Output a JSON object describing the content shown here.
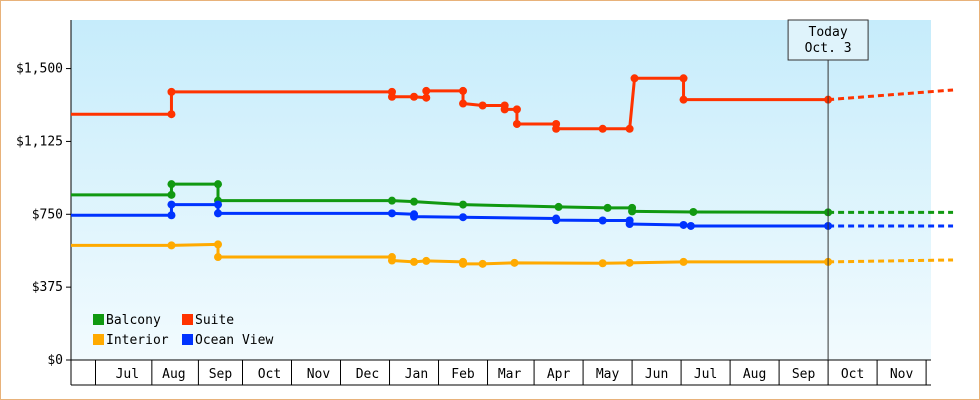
{
  "chart_data": {
    "type": "line",
    "title": "",
    "xlabel": "",
    "ylabel": "",
    "ylim": [
      0,
      1750
    ],
    "y_ticks": [
      0,
      375,
      750,
      1125,
      1500
    ],
    "y_tick_labels": [
      "$0",
      "$375",
      "$750",
      "$1,125",
      "$1,500"
    ],
    "x_ticks": [
      {
        "label": "Jul",
        "x": 2.15
      },
      {
        "label": "Aug",
        "x": 3.1
      },
      {
        "label": "Sep",
        "x": 4.05
      },
      {
        "label": "Oct",
        "x": 5.05
      },
      {
        "label": "Nov",
        "x": 6.05
      },
      {
        "label": "Dec",
        "x": 7.05
      },
      {
        "label": "Jan",
        "x": 8.05
      },
      {
        "label": "Feb",
        "x": 9.0
      },
      {
        "label": "Mar",
        "x": 9.95
      },
      {
        "label": "Apr",
        "x": 10.95
      },
      {
        "label": "May",
        "x": 11.95
      },
      {
        "label": "Jun",
        "x": 12.95
      },
      {
        "label": "Jul",
        "x": 13.95
      },
      {
        "label": "Aug",
        "x": 14.95
      },
      {
        "label": "Sep",
        "x": 15.95
      },
      {
        "label": "Oct",
        "x": 16.95
      },
      {
        "label": "Nov",
        "x": 17.95
      }
    ],
    "x_boundaries": [
      1.0,
      1.5,
      2.65,
      3.6,
      4.5,
      5.5,
      6.5,
      7.5,
      8.5,
      9.5,
      10.45,
      11.45,
      12.45,
      13.45,
      14.45,
      15.45,
      16.45,
      17.45,
      18.45
    ],
    "x_range": [
      1.0,
      18.55
    ],
    "today": {
      "x": 16.45,
      "label_line1": "Today",
      "label_line2": "Oct. 3"
    },
    "legend": {
      "placement": "bottom-left"
    },
    "series": [
      {
        "name": "Balcony",
        "color": "#119911",
        "points": [
          [
            1.0,
            850
          ],
          [
            3.05,
            850
          ],
          [
            3.05,
            905
          ],
          [
            4.0,
            905
          ],
          [
            4.0,
            820
          ],
          [
            7.55,
            820
          ],
          [
            8.0,
            815
          ],
          [
            9.0,
            800
          ],
          [
            10.95,
            788
          ],
          [
            11.95,
            783
          ],
          [
            12.45,
            783
          ],
          [
            12.45,
            765
          ],
          [
            13.7,
            762
          ],
          [
            16.45,
            760
          ]
        ],
        "forecast": [
          [
            16.45,
            760
          ],
          [
            19.0,
            760
          ]
        ]
      },
      {
        "name": "Suite",
        "color": "#ff3300",
        "points": [
          [
            1.0,
            1265
          ],
          [
            3.05,
            1265
          ],
          [
            3.05,
            1380
          ],
          [
            7.55,
            1380
          ],
          [
            7.55,
            1355
          ],
          [
            8.0,
            1355
          ],
          [
            8.25,
            1350
          ],
          [
            8.25,
            1385
          ],
          [
            9.0,
            1385
          ],
          [
            9.0,
            1320
          ],
          [
            9.4,
            1310
          ],
          [
            9.85,
            1310
          ],
          [
            9.85,
            1290
          ],
          [
            10.1,
            1290
          ],
          [
            10.1,
            1215
          ],
          [
            10.9,
            1215
          ],
          [
            10.9,
            1190
          ],
          [
            11.85,
            1190
          ],
          [
            12.4,
            1190
          ],
          [
            12.5,
            1450
          ],
          [
            13.5,
            1450
          ],
          [
            13.5,
            1340
          ],
          [
            16.45,
            1340
          ]
        ],
        "forecast": [
          [
            16.45,
            1340
          ],
          [
            19.0,
            1390
          ]
        ]
      },
      {
        "name": "Interior",
        "color": "#ffaa00",
        "points": [
          [
            1.0,
            590
          ],
          [
            3.05,
            590
          ],
          [
            4.0,
            595
          ],
          [
            4.0,
            530
          ],
          [
            7.55,
            530
          ],
          [
            7.55,
            512
          ],
          [
            8.0,
            505
          ],
          [
            8.25,
            510
          ],
          [
            9.0,
            505
          ],
          [
            9.0,
            495
          ],
          [
            9.4,
            495
          ],
          [
            10.05,
            500
          ],
          [
            11.85,
            498
          ],
          [
            12.4,
            500
          ],
          [
            13.5,
            505
          ],
          [
            16.45,
            505
          ]
        ],
        "forecast": [
          [
            16.45,
            505
          ],
          [
            19.0,
            515
          ]
        ]
      },
      {
        "name": "Ocean View",
        "color": "#0033ff",
        "points": [
          [
            1.0,
            745
          ],
          [
            3.05,
            745
          ],
          [
            3.05,
            800
          ],
          [
            4.0,
            800
          ],
          [
            4.0,
            755
          ],
          [
            7.55,
            755
          ],
          [
            8.0,
            750
          ],
          [
            8.0,
            738
          ],
          [
            9.0,
            735
          ],
          [
            10.9,
            728
          ],
          [
            10.9,
            720
          ],
          [
            11.85,
            718
          ],
          [
            12.4,
            718
          ],
          [
            12.4,
            700
          ],
          [
            13.5,
            695
          ],
          [
            13.65,
            690
          ],
          [
            16.45,
            690
          ]
        ],
        "forecast": [
          [
            16.45,
            690
          ],
          [
            19.0,
            690
          ]
        ]
      }
    ]
  }
}
